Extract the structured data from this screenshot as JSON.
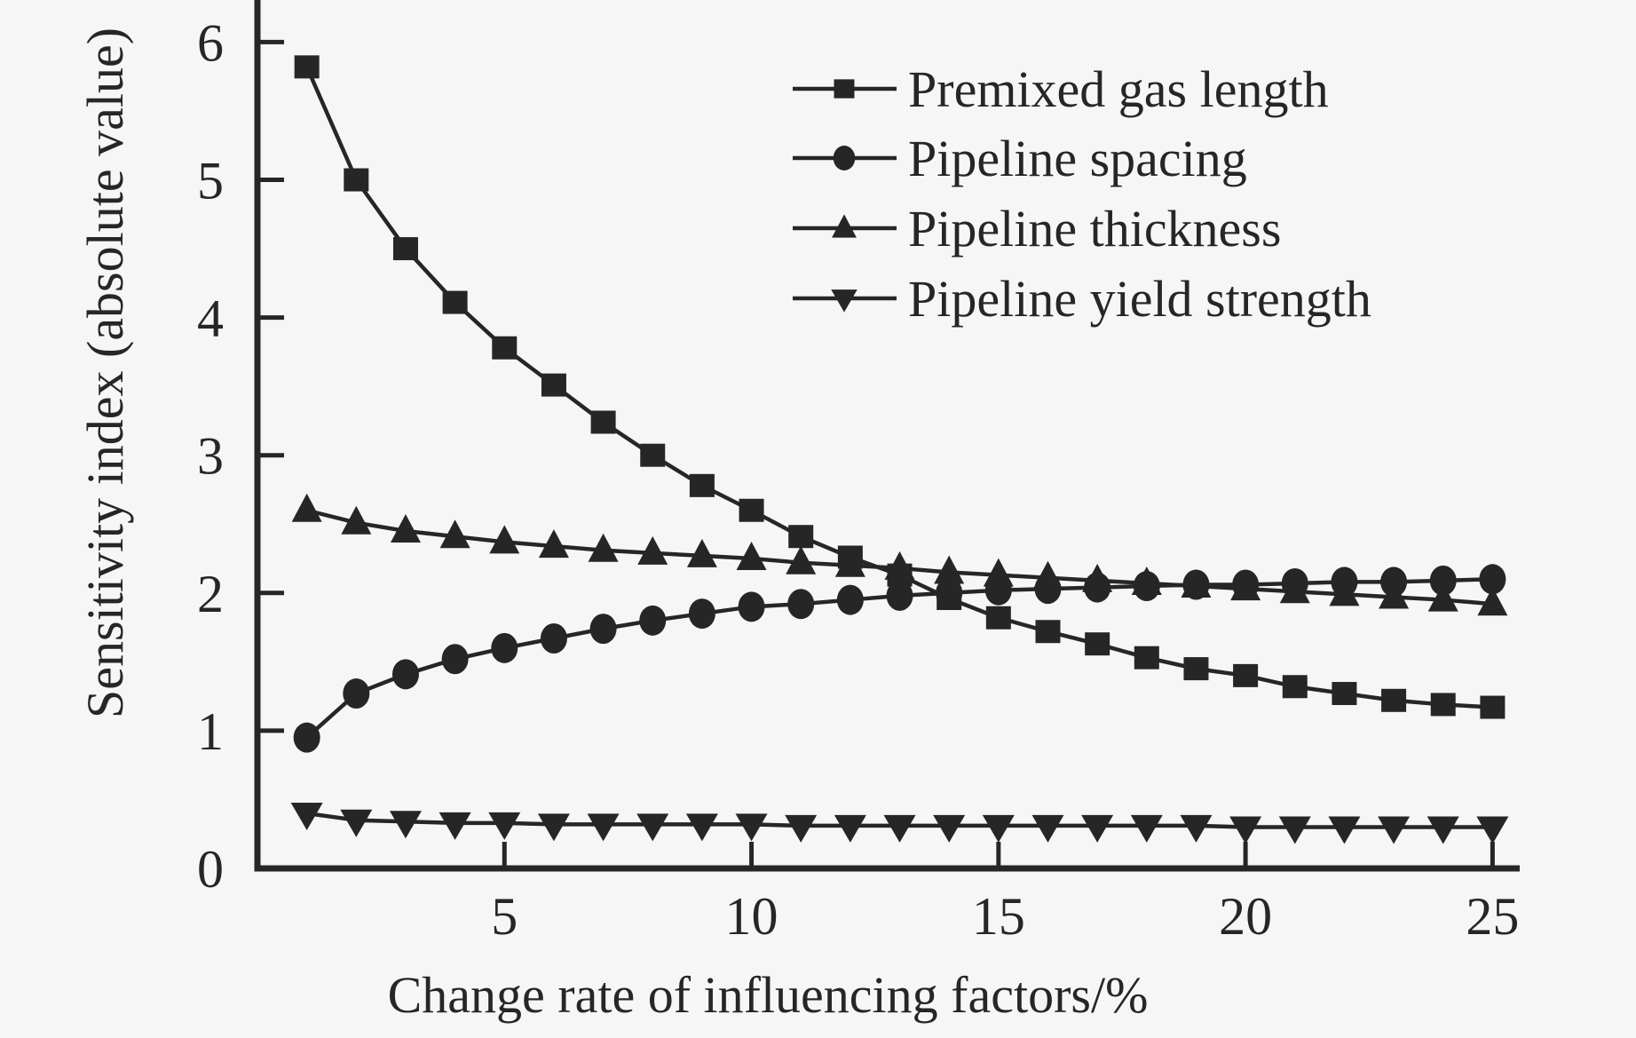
{
  "figure": {
    "background": "#f6f6f6",
    "ink": "#262626"
  },
  "chart_data": {
    "type": "line",
    "title": "",
    "xlabel": "Change rate of influencing factors/%",
    "ylabel": "Sensitivity index (absolute value)",
    "x": [
      1,
      2,
      3,
      4,
      5,
      6,
      7,
      8,
      9,
      10,
      11,
      12,
      13,
      14,
      15,
      16,
      17,
      18,
      19,
      20,
      21,
      22,
      23,
      24,
      25
    ],
    "xlim": [
      0,
      25.55
    ],
    "ylim": [
      0,
      6.28
    ],
    "x_ticks": [
      5,
      10,
      15,
      20,
      25
    ],
    "y_ticks": [
      0,
      1,
      2,
      3,
      4,
      5,
      6
    ],
    "grid": false,
    "legend_position": "upper-right-inside",
    "series": [
      {
        "name": "Premixed gas length",
        "marker": "square",
        "values": [
          5.82,
          5.0,
          4.5,
          4.11,
          3.78,
          3.51,
          3.24,
          3.0,
          2.78,
          2.6,
          2.41,
          2.26,
          2.13,
          1.96,
          1.82,
          1.72,
          1.63,
          1.53,
          1.45,
          1.4,
          1.32,
          1.27,
          1.22,
          1.19,
          1.17
        ]
      },
      {
        "name": "Pipeline spacing",
        "marker": "circle",
        "values": [
          0.95,
          1.27,
          1.41,
          1.52,
          1.6,
          1.67,
          1.74,
          1.8,
          1.85,
          1.9,
          1.92,
          1.95,
          1.98,
          2.0,
          2.02,
          2.03,
          2.04,
          2.05,
          2.06,
          2.06,
          2.07,
          2.08,
          2.08,
          2.09,
          2.1
        ]
      },
      {
        "name": "Pipeline thickness",
        "marker": "triangle-up",
        "values": [
          2.6,
          2.51,
          2.45,
          2.41,
          2.37,
          2.34,
          2.31,
          2.29,
          2.27,
          2.25,
          2.22,
          2.2,
          2.18,
          2.15,
          2.13,
          2.11,
          2.09,
          2.07,
          2.05,
          2.03,
          2.01,
          1.99,
          1.97,
          1.95,
          1.92
        ]
      },
      {
        "name": "Pipeline yield strength",
        "marker": "triangle-down",
        "values": [
          0.4,
          0.35,
          0.34,
          0.33,
          0.33,
          0.32,
          0.32,
          0.32,
          0.32,
          0.32,
          0.31,
          0.31,
          0.31,
          0.31,
          0.31,
          0.31,
          0.31,
          0.31,
          0.31,
          0.3,
          0.3,
          0.3,
          0.3,
          0.3,
          0.3
        ]
      }
    ]
  }
}
